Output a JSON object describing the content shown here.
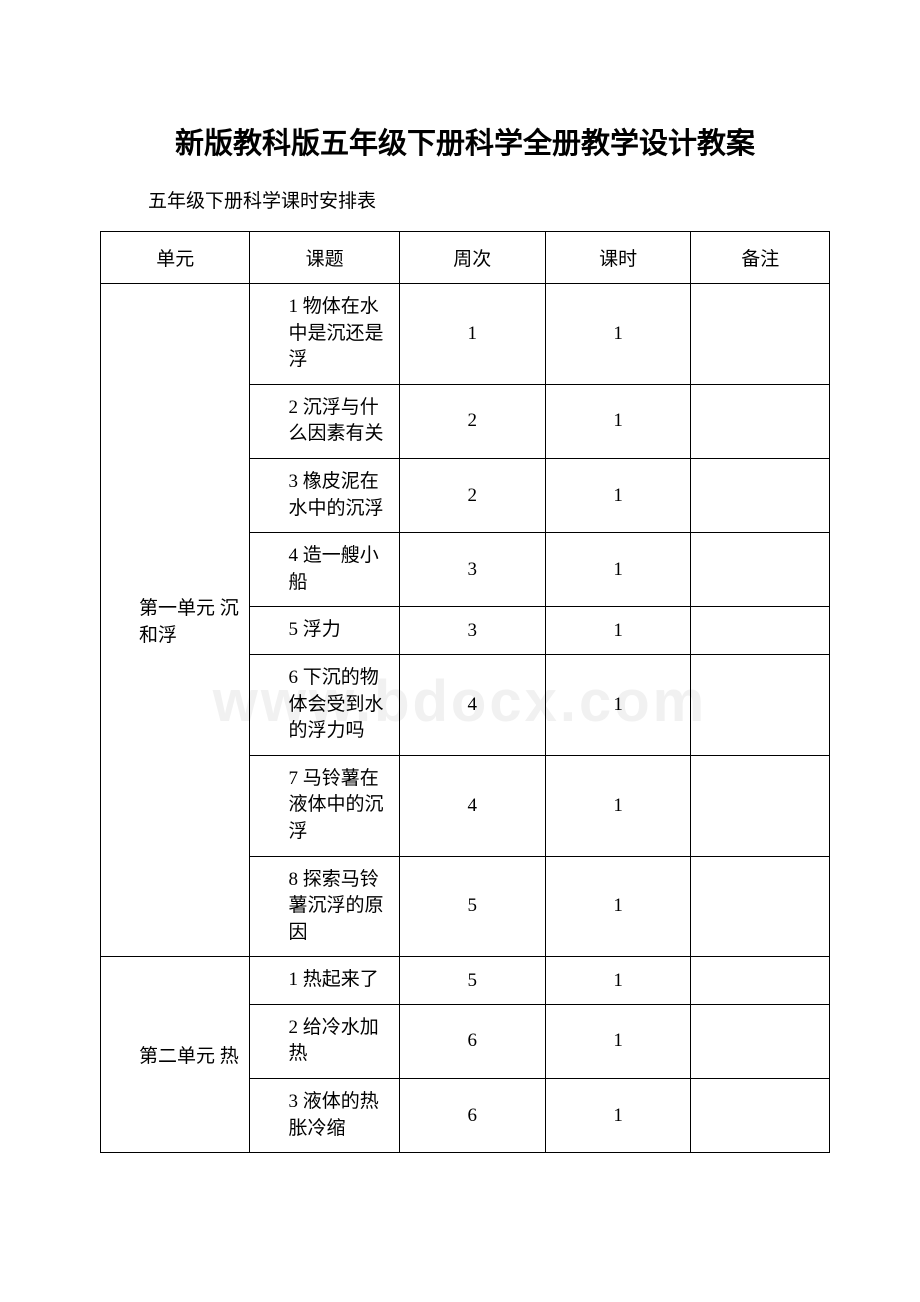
{
  "title": "新版教科版五年级下册科学全册教学设计教案",
  "subtitle": "五年级下册科学课时安排表",
  "watermark": "www.bdocx.com",
  "headers": {
    "unit": "单元",
    "topic": "课题",
    "week": "周次",
    "period": "课时",
    "note": "备注"
  },
  "units": [
    {
      "name": "第一单元 沉和浮",
      "rowspan": 8,
      "rows": [
        {
          "topic": "1 物体在水中是沉还是浮",
          "week": "1",
          "period": "1",
          "note": ""
        },
        {
          "topic": "2 沉浮与什么因素有关",
          "week": "2",
          "period": "1",
          "note": ""
        },
        {
          "topic": "3 橡皮泥在水中的沉浮",
          "week": "2",
          "period": "1",
          "note": ""
        },
        {
          "topic": "4 造一艘小船",
          "week": "3",
          "period": "1",
          "note": ""
        },
        {
          "topic": "5 浮力",
          "week": "3",
          "period": "1",
          "note": ""
        },
        {
          "topic": "6 下沉的物体会受到水的浮力吗",
          "week": "4",
          "period": "1",
          "note": ""
        },
        {
          "topic": "7 马铃薯在液体中的沉浮",
          "week": "4",
          "period": "1",
          "note": ""
        },
        {
          "topic": "8 探索马铃薯沉浮的原因",
          "week": "5",
          "period": "1",
          "note": ""
        }
      ]
    },
    {
      "name": "第二单元 热",
      "rowspan": 3,
      "rows": [
        {
          "topic": "1 热起来了",
          "week": "5",
          "period": "1",
          "note": ""
        },
        {
          "topic": "2 给冷水加热",
          "week": "6",
          "period": "1",
          "note": ""
        },
        {
          "topic": "3 液体的热胀冷缩",
          "week": "6",
          "period": "1",
          "note": ""
        }
      ]
    }
  ]
}
